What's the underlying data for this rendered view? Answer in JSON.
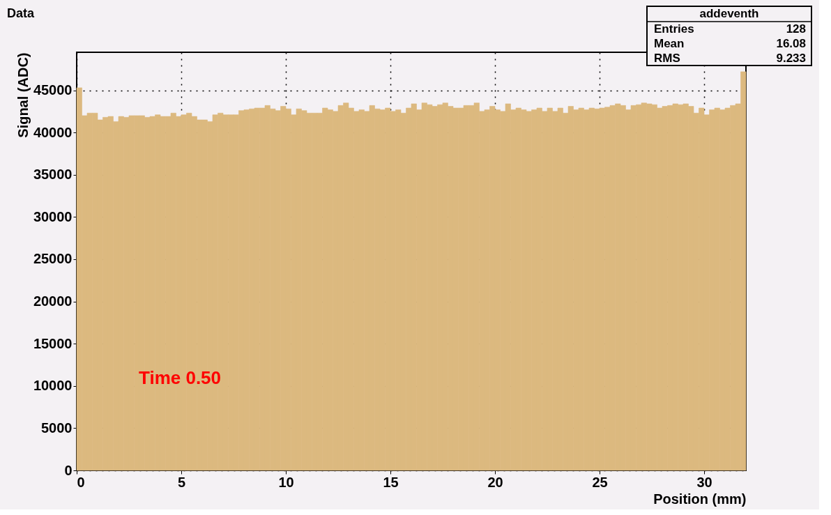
{
  "chart_data": {
    "type": "histogram",
    "title": "Data",
    "xlabel": "Position (mm)",
    "ylabel": "Signal (ADC)",
    "bins": [
      0,
      0.25,
      0.5,
      0.75,
      1,
      1.25,
      1.5,
      1.75,
      2,
      2.25,
      2.5,
      2.75,
      3,
      3.25,
      3.5,
      3.75,
      4,
      4.25,
      4.5,
      4.75,
      5,
      5.25,
      5.5,
      5.75,
      6,
      6.25,
      6.5,
      6.75,
      7,
      7.25,
      7.5,
      7.75,
      8,
      8.25,
      8.5,
      8.75,
      9,
      9.25,
      9.5,
      9.75,
      10,
      10.25,
      10.5,
      10.75,
      11,
      11.25,
      11.5,
      11.75,
      12,
      12.25,
      12.5,
      12.75,
      13,
      13.25,
      13.5,
      13.75,
      14,
      14.25,
      14.5,
      14.75,
      15,
      15.25,
      15.5,
      15.75,
      16,
      16.25,
      16.5,
      16.75,
      17,
      17.25,
      17.5,
      17.75,
      18,
      18.25,
      18.5,
      18.75,
      19,
      19.25,
      19.5,
      19.75,
      20,
      20.25,
      20.5,
      20.75,
      21,
      21.25,
      21.5,
      21.75,
      22,
      22.25,
      22.5,
      22.75,
      23,
      23.25,
      23.5,
      23.75,
      24,
      24.25,
      24.5,
      24.75,
      25,
      25.25,
      25.5,
      25.75,
      26,
      26.25,
      26.5,
      26.75,
      27,
      27.25,
      27.5,
      27.75,
      28,
      28.25,
      28.5,
      28.75,
      29,
      29.25,
      29.5,
      29.75,
      30,
      30.25,
      30.5,
      30.75,
      31,
      31.25,
      31.5,
      31.75,
      32
    ],
    "values": [
      45300,
      42000,
      42300,
      42300,
      41500,
      41800,
      41900,
      41300,
      41900,
      41800,
      42000,
      42000,
      42000,
      41800,
      41900,
      42100,
      41900,
      41900,
      42300,
      41900,
      42100,
      42300,
      41900,
      41500,
      41500,
      41300,
      42100,
      42300,
      42100,
      42100,
      42100,
      42600,
      42700,
      42800,
      42900,
      42900,
      43200,
      42800,
      42600,
      43100,
      42800,
      42100,
      42800,
      42600,
      42300,
      42300,
      42300,
      42900,
      42700,
      42500,
      43200,
      43500,
      42900,
      42500,
      42700,
      42500,
      43200,
      42800,
      42700,
      42900,
      42500,
      42700,
      42300,
      42900,
      43400,
      42700,
      43500,
      43300,
      43100,
      43300,
      43500,
      43100,
      42900,
      42900,
      43200,
      43200,
      43500,
      42500,
      42700,
      43100,
      42700,
      42500,
      43400,
      42700,
      42900,
      42700,
      42500,
      42700,
      42900,
      42500,
      42900,
      42500,
      42900,
      42300,
      43100,
      42700,
      42900,
      42700,
      42900,
      42800,
      42900,
      43000,
      43200,
      43400,
      43200,
      42700,
      43200,
      43300,
      43500,
      43400,
      43300,
      42900,
      43100,
      43200,
      43400,
      43300,
      43400,
      43100,
      42300,
      42900,
      42100,
      42700,
      42900,
      42700,
      42900,
      43200,
      43400,
      47200
    ],
    "color": "#dcb97f",
    "xlim": [
      0,
      32
    ],
    "xticks": [
      0,
      5,
      10,
      15,
      20,
      25,
      30
    ],
    "ylim": [
      0,
      49500
    ],
    "yticks": [
      0,
      5000,
      10000,
      15000,
      20000,
      25000,
      30000,
      35000,
      40000,
      45000
    ],
    "grid": true,
    "annotations": [
      "Time 0.50",
      "addeventh",
      "Entries 128",
      "Mean 16.08",
      "RMS 9.233"
    ]
  }
}
